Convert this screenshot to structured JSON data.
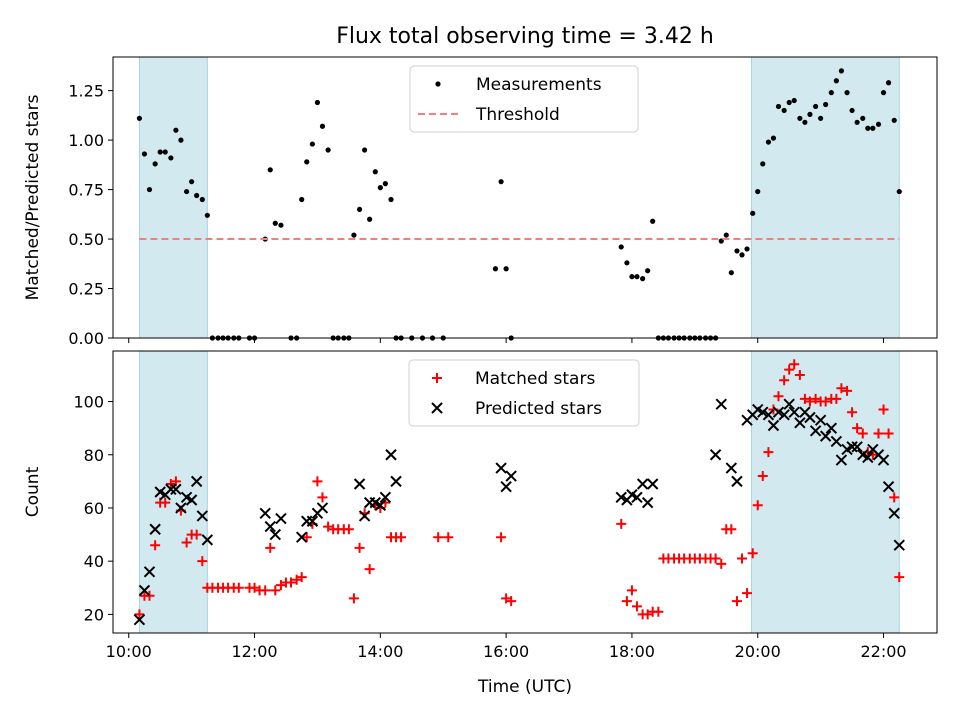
{
  "chart_data": [
    {
      "type": "scatter",
      "title": "Flux total observing time = 3.42 h",
      "xlabel": "",
      "ylabel": "Matched/Predicted stars",
      "xlim": [
        9.75,
        22.85
      ],
      "ylim": [
        0.0,
        1.42
      ],
      "yticks": [
        0.0,
        0.25,
        0.5,
        0.75,
        1.0,
        1.25
      ],
      "ytick_labels": [
        "0.00",
        "0.25",
        "0.50",
        "0.75",
        "1.00",
        "1.25"
      ],
      "xticks": [
        10,
        12,
        14,
        16,
        18,
        20,
        22
      ],
      "shaded_regions": [
        [
          10.17,
          11.25
        ],
        [
          19.9,
          22.25
        ]
      ],
      "shade_color": "#d3e9f0",
      "legend": {
        "placement": "top-center",
        "entries": [
          "Measurements",
          "Threshold"
        ]
      },
      "series": [
        {
          "name": "Measurements",
          "marker": "dot",
          "color": "#000000",
          "x": [
            10.17,
            10.25,
            10.33,
            10.42,
            10.5,
            10.58,
            10.67,
            10.75,
            10.83,
            10.92,
            11.0,
            11.08,
            11.17,
            11.25,
            11.33,
            11.42,
            11.5,
            11.58,
            11.67,
            11.75,
            11.92,
            12.0,
            12.17,
            12.25,
            12.33,
            12.42,
            12.58,
            12.67,
            12.75,
            12.83,
            12.92,
            13.0,
            13.08,
            13.17,
            13.25,
            13.33,
            13.42,
            13.5,
            13.58,
            13.67,
            13.75,
            13.83,
            13.92,
            14.0,
            14.08,
            14.17,
            14.25,
            14.33,
            14.5,
            14.67,
            14.83,
            15.0,
            15.83,
            15.92,
            16.0,
            16.08,
            17.83,
            17.92,
            18.0,
            18.08,
            18.17,
            18.25,
            18.33,
            18.42,
            18.5,
            18.58,
            18.67,
            18.75,
            18.83,
            18.92,
            19.0,
            19.08,
            19.17,
            19.25,
            19.33,
            19.42,
            19.5,
            19.58,
            19.67,
            19.75,
            19.83,
            19.92,
            20.0,
            20.08,
            20.17,
            20.25,
            20.33,
            20.42,
            20.5,
            20.58,
            20.67,
            20.75,
            20.83,
            20.92,
            21.0,
            21.08,
            21.17,
            21.25,
            21.33,
            21.42,
            21.5,
            21.58,
            21.67,
            21.75,
            21.83,
            21.92,
            22.0,
            22.08,
            22.17,
            22.25
          ],
          "y": [
            1.11,
            0.93,
            0.75,
            0.88,
            0.94,
            0.94,
            0.91,
            1.05,
            1.0,
            0.74,
            0.79,
            0.72,
            0.7,
            0.62,
            0,
            0,
            0,
            0,
            0,
            0,
            0,
            0,
            0.5,
            0.85,
            0.58,
            0.57,
            0,
            0,
            0.7,
            0.89,
            0.98,
            1.19,
            1.07,
            0.95,
            0,
            0,
            0,
            0,
            0.52,
            0.65,
            0.95,
            0.6,
            0.84,
            0.76,
            0.78,
            0.7,
            0,
            0,
            0,
            0,
            0,
            0,
            0.35,
            0.79,
            0.35,
            0,
            0.46,
            0.38,
            0.31,
            0.31,
            0.3,
            0.34,
            0.59,
            0,
            0,
            0,
            0,
            0,
            0,
            0,
            0,
            0,
            0,
            0,
            0,
            0.49,
            0.52,
            0.33,
            0.44,
            0.42,
            0.45,
            0.63,
            0.74,
            0.88,
            0.99,
            1.01,
            1.17,
            1.15,
            1.19,
            1.2,
            1.11,
            1.09,
            1.13,
            1.17,
            1.11,
            1.18,
            1.24,
            1.3,
            1.35,
            1.24,
            1.15,
            1.09,
            1.11,
            1.06,
            1.06,
            1.08,
            1.24,
            1.29,
            1.1,
            0.74
          ]
        },
        {
          "name": "Threshold",
          "style": "dashed",
          "color": "#f08080",
          "x": [
            10.17,
            22.25
          ],
          "y": [
            0.5,
            0.5
          ]
        }
      ]
    },
    {
      "type": "scatter",
      "title": "",
      "xlabel": "Time (UTC)",
      "ylabel": "Count",
      "xlim": [
        9.75,
        22.85
      ],
      "ylim": [
        13,
        119
      ],
      "yticks": [
        20,
        40,
        60,
        80,
        100
      ],
      "xticks": [
        10,
        12,
        14,
        16,
        18,
        20,
        22
      ],
      "xtick_labels": [
        "10:00",
        "12:00",
        "14:00",
        "16:00",
        "18:00",
        "20:00",
        "22:00"
      ],
      "shaded_regions": [
        [
          10.17,
          11.25
        ],
        [
          19.9,
          22.25
        ]
      ],
      "shade_color": "#d3e9f0",
      "legend": {
        "placement": "top-center",
        "entries": [
          "Matched stars",
          "Predicted stars"
        ]
      },
      "series": [
        {
          "name": "Matched stars",
          "marker": "plus",
          "color": "#ff0000",
          "x": [
            10.17,
            10.25,
            10.33,
            10.42,
            10.5,
            10.58,
            10.67,
            10.75,
            10.83,
            10.92,
            11.0,
            11.08,
            11.17,
            11.25,
            11.33,
            11.42,
            11.5,
            11.58,
            11.67,
            11.75,
            11.92,
            12.0,
            12.08,
            12.17,
            12.25,
            12.33,
            12.42,
            12.5,
            12.58,
            12.67,
            12.75,
            12.83,
            12.92,
            13.0,
            13.08,
            13.17,
            13.25,
            13.33,
            13.42,
            13.5,
            13.58,
            13.67,
            13.75,
            13.83,
            13.92,
            14.0,
            14.08,
            14.17,
            14.25,
            14.33,
            14.92,
            15.08,
            15.92,
            16.0,
            16.08,
            17.83,
            17.92,
            18.0,
            18.08,
            18.17,
            18.25,
            18.33,
            18.42,
            18.5,
            18.58,
            18.67,
            18.75,
            18.83,
            18.92,
            19.0,
            19.08,
            19.17,
            19.25,
            19.33,
            19.42,
            19.5,
            19.58,
            19.67,
            19.75,
            19.83,
            19.92,
            20.0,
            20.08,
            20.17,
            20.25,
            20.33,
            20.42,
            20.5,
            20.58,
            20.67,
            20.75,
            20.83,
            20.92,
            21.0,
            21.08,
            21.17,
            21.25,
            21.33,
            21.42,
            21.5,
            21.58,
            21.67,
            21.75,
            21.83,
            21.92,
            22.0,
            22.08,
            22.17,
            22.25
          ],
          "y": [
            20,
            27,
            27,
            46,
            62,
            62,
            69,
            70,
            59,
            47,
            50,
            50,
            40,
            30,
            30,
            30,
            30,
            30,
            30,
            30,
            30,
            30,
            29,
            29,
            45,
            29,
            31,
            32,
            32,
            33,
            34,
            49,
            54,
            70,
            64,
            53,
            52,
            52,
            52,
            52,
            26,
            45,
            58,
            37,
            61,
            60,
            62,
            49,
            49,
            49,
            49,
            49,
            49,
            26,
            25,
            54,
            25,
            29,
            23,
            20,
            20,
            21,
            21,
            41,
            41,
            41,
            41,
            41,
            41,
            41,
            41,
            41,
            41,
            41,
            39,
            52,
            52,
            25,
            41,
            28,
            43,
            61,
            72,
            81,
            97,
            102,
            108,
            112,
            114,
            110,
            101,
            100,
            101,
            100,
            100,
            101,
            101,
            105,
            104,
            96,
            90,
            88,
            81,
            80,
            88,
            97,
            88,
            64,
            34
          ],
          "x_matched_fix": [
            10.17,
            10.25,
            10.33,
            10.42,
            10.5,
            10.58,
            10.67,
            10.75,
            10.83,
            10.92,
            11.0,
            11.08,
            11.17,
            11.25,
            11.33,
            11.42,
            11.5,
            11.58,
            11.67,
            11.75,
            11.92,
            12.0,
            12.08,
            12.17,
            12.25,
            12.33,
            12.42,
            12.5,
            12.58,
            12.67,
            12.75,
            12.83,
            12.92,
            13.0,
            13.08,
            13.17,
            13.25,
            13.33,
            13.42,
            13.5,
            13.58,
            13.67,
            13.75,
            13.83,
            13.92,
            14.0,
            14.08,
            14.17,
            14.25,
            14.33,
            14.92,
            15.08,
            15.92,
            16.0,
            16.08,
            17.83,
            17.92,
            18.0,
            18.08,
            18.17,
            18.25,
            18.33,
            18.42,
            18.5,
            18.58,
            18.67,
            18.75,
            18.83,
            18.92,
            19.0,
            19.08,
            19.17,
            19.25,
            19.33,
            19.42,
            19.5,
            19.58,
            19.67,
            19.75,
            19.83,
            19.92,
            20.0,
            20.08,
            20.17,
            20.25,
            20.33,
            20.42,
            20.5,
            20.58,
            20.67,
            20.75,
            20.83,
            20.92,
            21.0,
            21.08,
            21.17,
            21.25,
            21.33,
            21.42,
            21.5,
            21.58,
            21.67,
            21.75,
            21.83,
            21.92,
            22.0,
            22.08,
            22.17,
            22.25
          ]
        },
        {
          "name": "Predicted stars",
          "marker": "x",
          "color": "#000000",
          "x": [
            10.17,
            10.25,
            10.33,
            10.42,
            10.5,
            10.58,
            10.67,
            10.75,
            10.83,
            10.92,
            11.0,
            11.08,
            11.17,
            11.25,
            12.17,
            12.25,
            12.33,
            12.42,
            12.75,
            12.83,
            12.92,
            13.0,
            13.08,
            13.67,
            13.75,
            13.83,
            13.92,
            14.0,
            14.08,
            14.17,
            14.25,
            15.92,
            16.0,
            16.08,
            17.83,
            17.92,
            18.0,
            18.08,
            18.17,
            18.25,
            18.33,
            19.33,
            19.42,
            19.58,
            19.67,
            19.83,
            19.92,
            20.0,
            20.08,
            20.17,
            20.25,
            20.33,
            20.42,
            20.5,
            20.58,
            20.67,
            20.75,
            20.83,
            20.92,
            21.0,
            21.08,
            21.17,
            21.25,
            21.33,
            21.42,
            21.5,
            21.58,
            21.67,
            21.75,
            21.83,
            21.92,
            22.0,
            22.08,
            22.17,
            22.25
          ],
          "y": [
            18,
            29,
            36,
            52,
            66,
            65,
            67,
            67,
            60,
            64,
            63,
            70,
            57,
            48,
            58,
            53,
            50,
            56,
            49,
            55,
            55,
            58,
            60,
            69,
            57,
            62,
            62,
            61,
            64,
            80,
            70,
            75,
            68,
            72,
            64,
            63,
            65,
            64,
            69,
            62,
            69,
            80,
            99,
            75,
            70,
            93,
            95,
            97,
            96,
            95,
            91,
            96,
            95,
            99,
            96,
            92,
            96,
            94,
            89,
            93,
            87,
            90,
            85,
            78,
            82,
            83,
            83,
            80,
            79,
            82,
            80,
            78,
            68,
            58,
            46
          ]
        }
      ]
    }
  ]
}
